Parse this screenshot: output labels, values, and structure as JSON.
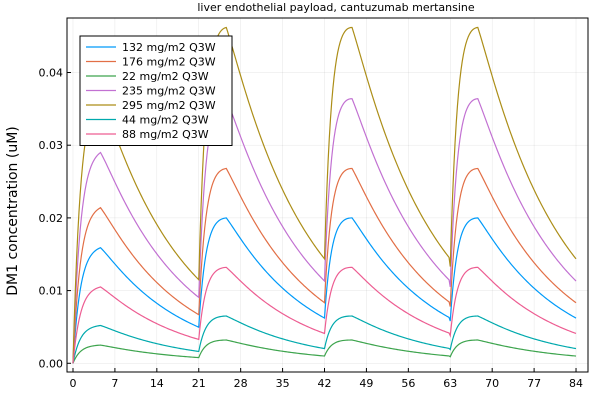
{
  "chart_data": {
    "type": "line",
    "title": "liver endothelial payload, cantuzumab mertansine",
    "xlabel": "",
    "ylabel": "DM1 concentration (uM)",
    "xlim": [
      -1,
      86
    ],
    "ylim": [
      -0.0012,
      0.0475
    ],
    "xticks": [
      0,
      7,
      14,
      21,
      28,
      35,
      42,
      49,
      56,
      63,
      70,
      77,
      84
    ],
    "yticks": [
      0.0,
      0.01,
      0.02,
      0.03,
      0.04
    ],
    "ytick_labels": [
      "0.00",
      "0.01",
      "0.02",
      "0.03",
      "0.04"
    ],
    "grid": true,
    "legend_position": "top-left",
    "dose_interval_days": 21,
    "series": [
      {
        "name": "132 mg/m2 Q3W",
        "color": "#009af9",
        "first_peak": 0.0159,
        "peak": 0.02,
        "trough": 0.0058
      },
      {
        "name": "176 mg/m2 Q3W",
        "color": "#e26f46",
        "first_peak": 0.0214,
        "peak": 0.0268,
        "trough": 0.0078
      },
      {
        "name": "22 mg/m2 Q3W",
        "color": "#3da44d",
        "first_peak": 0.0025,
        "peak": 0.0032,
        "trough": 0.0009
      },
      {
        "name": "235 mg/m2 Q3W",
        "color": "#c271d2",
        "first_peak": 0.029,
        "peak": 0.0364,
        "trough": 0.0105
      },
      {
        "name": "295 mg/m2 Q3W",
        "color": "#ac8e18",
        "first_peak": 0.0368,
        "peak": 0.0462,
        "trough": 0.0133
      },
      {
        "name": "44 mg/m2 Q3W",
        "color": "#00a9ad",
        "first_peak": 0.0052,
        "peak": 0.0065,
        "trough": 0.0019
      },
      {
        "name": "88 mg/m2 Q3W",
        "color": "#ed5d92",
        "first_peak": 0.0105,
        "peak": 0.0132,
        "trough": 0.0038
      }
    ]
  }
}
